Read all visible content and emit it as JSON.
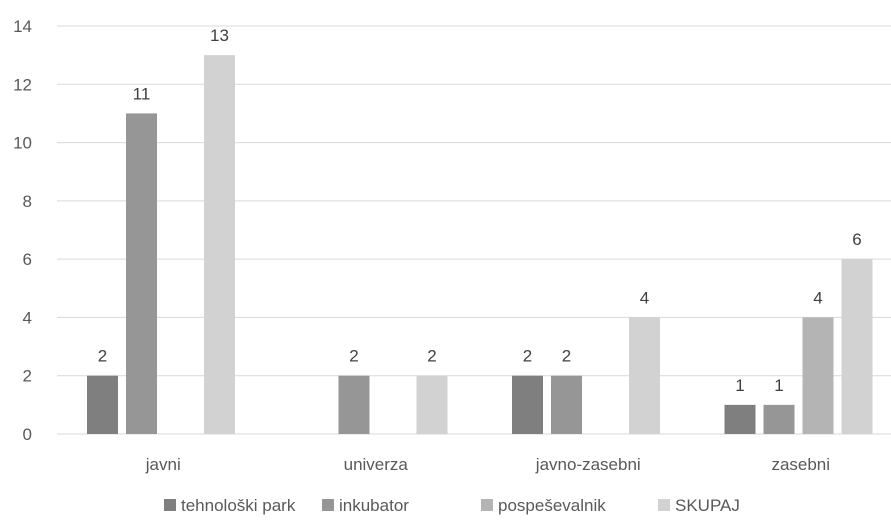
{
  "chart_data": {
    "type": "bar",
    "title": "",
    "xlabel": "",
    "ylabel": "",
    "categories": [
      "javni",
      "univerza",
      "javno-zasebni",
      "zasebni"
    ],
    "series": [
      {
        "name": "tehnološki park",
        "values": [
          2,
          null,
          2,
          1
        ],
        "color": "#7f7f7f"
      },
      {
        "name": "inkubator",
        "values": [
          11,
          2,
          2,
          1
        ],
        "color": "#969696"
      },
      {
        "name": "pospeševalnik",
        "values": [
          null,
          null,
          null,
          4
        ],
        "color": "#b4b4b4"
      },
      {
        "name": "SKUPAJ",
        "values": [
          13,
          2,
          4,
          6
        ],
        "color": "#d2d2d2"
      }
    ],
    "ylim": [
      0,
      14
    ],
    "yticks": [
      0,
      2,
      4,
      6,
      8,
      10,
      12,
      14
    ],
    "grid": true,
    "legend_position": "bottom"
  }
}
